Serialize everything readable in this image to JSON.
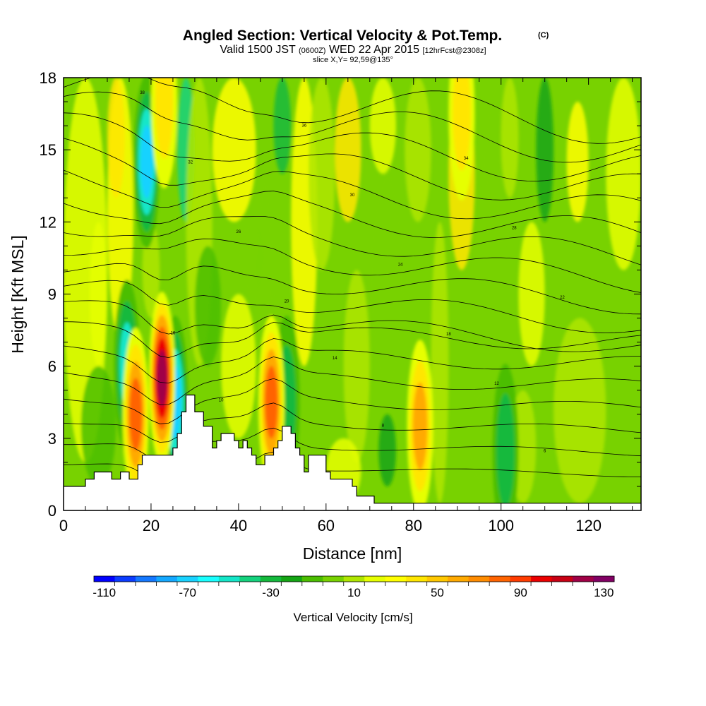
{
  "title": {
    "main": "Angled Section: Vertical Velocity & Pot.Temp.",
    "unit": "(C)",
    "valid_prefix": "Valid 1500 JST",
    "valid_z": "(0600Z)",
    "valid_date": "WED 22 Apr 2015",
    "forecast": "[12hrFcst@2308z]",
    "slice": "slice X,Y= 92,59@135°"
  },
  "chart_data": {
    "type": "heatmap",
    "xlabel": "Distance [nm]",
    "ylabel": "Height [Kft MSL]",
    "xlim": [
      0,
      132
    ],
    "ylim": [
      0,
      18
    ],
    "x_ticks": [
      0,
      20,
      40,
      60,
      80,
      100,
      120
    ],
    "y_ticks": [
      0,
      3,
      6,
      9,
      12,
      15,
      18
    ],
    "colorbar": {
      "title": "Vertical Velocity [cm/s]",
      "min": -115,
      "max": 135,
      "step": 10,
      "tick_labels": [
        -110,
        -70,
        -30,
        10,
        50,
        90,
        130
      ],
      "colors": [
        "#0000ff",
        "#0b3cff",
        "#1478ff",
        "#14a8ff",
        "#19d2ff",
        "#19ffff",
        "#14e6c8",
        "#14d27d",
        "#14b93c",
        "#14a514",
        "#4bbe00",
        "#78d200",
        "#afe600",
        "#e6ff00",
        "#ffff00",
        "#ffe600",
        "#ffc800",
        "#ffaa00",
        "#ff8c00",
        "#ff6400",
        "#ff3c00",
        "#eb0000",
        "#c80014",
        "#a00046",
        "#820064"
      ]
    },
    "terrain_kft": [
      [
        0,
        1.0
      ],
      [
        5,
        1.0
      ],
      [
        5,
        1.3
      ],
      [
        7,
        1.3
      ],
      [
        7,
        1.6
      ],
      [
        11,
        1.6
      ],
      [
        11,
        1.3
      ],
      [
        13,
        1.3
      ],
      [
        13,
        1.6
      ],
      [
        15,
        1.6
      ],
      [
        15,
        1.3
      ],
      [
        17,
        1.3
      ],
      [
        17,
        1.9
      ],
      [
        18,
        1.9
      ],
      [
        18,
        2.3
      ],
      [
        25,
        2.3
      ],
      [
        25,
        2.6
      ],
      [
        26,
        2.6
      ],
      [
        26,
        3.2
      ],
      [
        27,
        3.2
      ],
      [
        27,
        4.1
      ],
      [
        28,
        4.1
      ],
      [
        28,
        4.8
      ],
      [
        30,
        4.8
      ],
      [
        30,
        4.1
      ],
      [
        32,
        4.1
      ],
      [
        32,
        3.5
      ],
      [
        34,
        3.5
      ],
      [
        34,
        2.6
      ],
      [
        35,
        2.6
      ],
      [
        35,
        2.9
      ],
      [
        36,
        2.9
      ],
      [
        36,
        3.2
      ],
      [
        39,
        3.2
      ],
      [
        39,
        2.9
      ],
      [
        40,
        2.9
      ],
      [
        40,
        2.6
      ],
      [
        41,
        2.6
      ],
      [
        41,
        2.9
      ],
      [
        42,
        2.9
      ],
      [
        42,
        2.6
      ],
      [
        43,
        2.6
      ],
      [
        43,
        2.3
      ],
      [
        44,
        2.3
      ],
      [
        44,
        1.9
      ],
      [
        46,
        1.9
      ],
      [
        46,
        2.3
      ],
      [
        48,
        2.3
      ],
      [
        48,
        2.6
      ],
      [
        49,
        2.6
      ],
      [
        49,
        2.9
      ],
      [
        50,
        2.9
      ],
      [
        50,
        3.5
      ],
      [
        52,
        3.5
      ],
      [
        52,
        3.2
      ],
      [
        53,
        3.2
      ],
      [
        53,
        2.6
      ],
      [
        54,
        2.6
      ],
      [
        54,
        2.3
      ],
      [
        55,
        2.3
      ],
      [
        55,
        1.6
      ],
      [
        56,
        1.6
      ],
      [
        56,
        2.3
      ],
      [
        60,
        2.3
      ],
      [
        60,
        1.6
      ],
      [
        61,
        1.6
      ],
      [
        61,
        1.3
      ],
      [
        66,
        1.3
      ],
      [
        66,
        1.0
      ],
      [
        67,
        1.0
      ],
      [
        67,
        0.6
      ],
      [
        71,
        0.6
      ],
      [
        71,
        0.3
      ],
      [
        132,
        0.3
      ]
    ],
    "updrafts": [
      {
        "x": 16.5,
        "z": 4.0,
        "value": 95
      },
      {
        "x": 22.5,
        "z": 5.5,
        "value": 125
      },
      {
        "x": 47.5,
        "z": 4.5,
        "value": 85
      },
      {
        "x": 81.5,
        "z": 3.5,
        "value": 70
      },
      {
        "x": 91,
        "z": 16.5,
        "value": 50
      },
      {
        "x": 23,
        "z": 17,
        "value": 55
      }
    ],
    "downdrafts": [
      {
        "x": 19,
        "z": 14.5,
        "value": -70
      },
      {
        "x": 25.5,
        "z": 4.5,
        "value": -75
      },
      {
        "x": 14.5,
        "z": 6.0,
        "value": -60
      },
      {
        "x": 51,
        "z": 4.5,
        "value": -45
      },
      {
        "x": 101,
        "z": 2.5,
        "value": -35
      }
    ],
    "isentrope_labels": [
      "38",
      "36",
      "34",
      "32",
      "30",
      "28",
      "26",
      "24",
      "22",
      "20",
      "18",
      "16",
      "14",
      "12",
      "10",
      "8",
      "6",
      "4"
    ]
  }
}
